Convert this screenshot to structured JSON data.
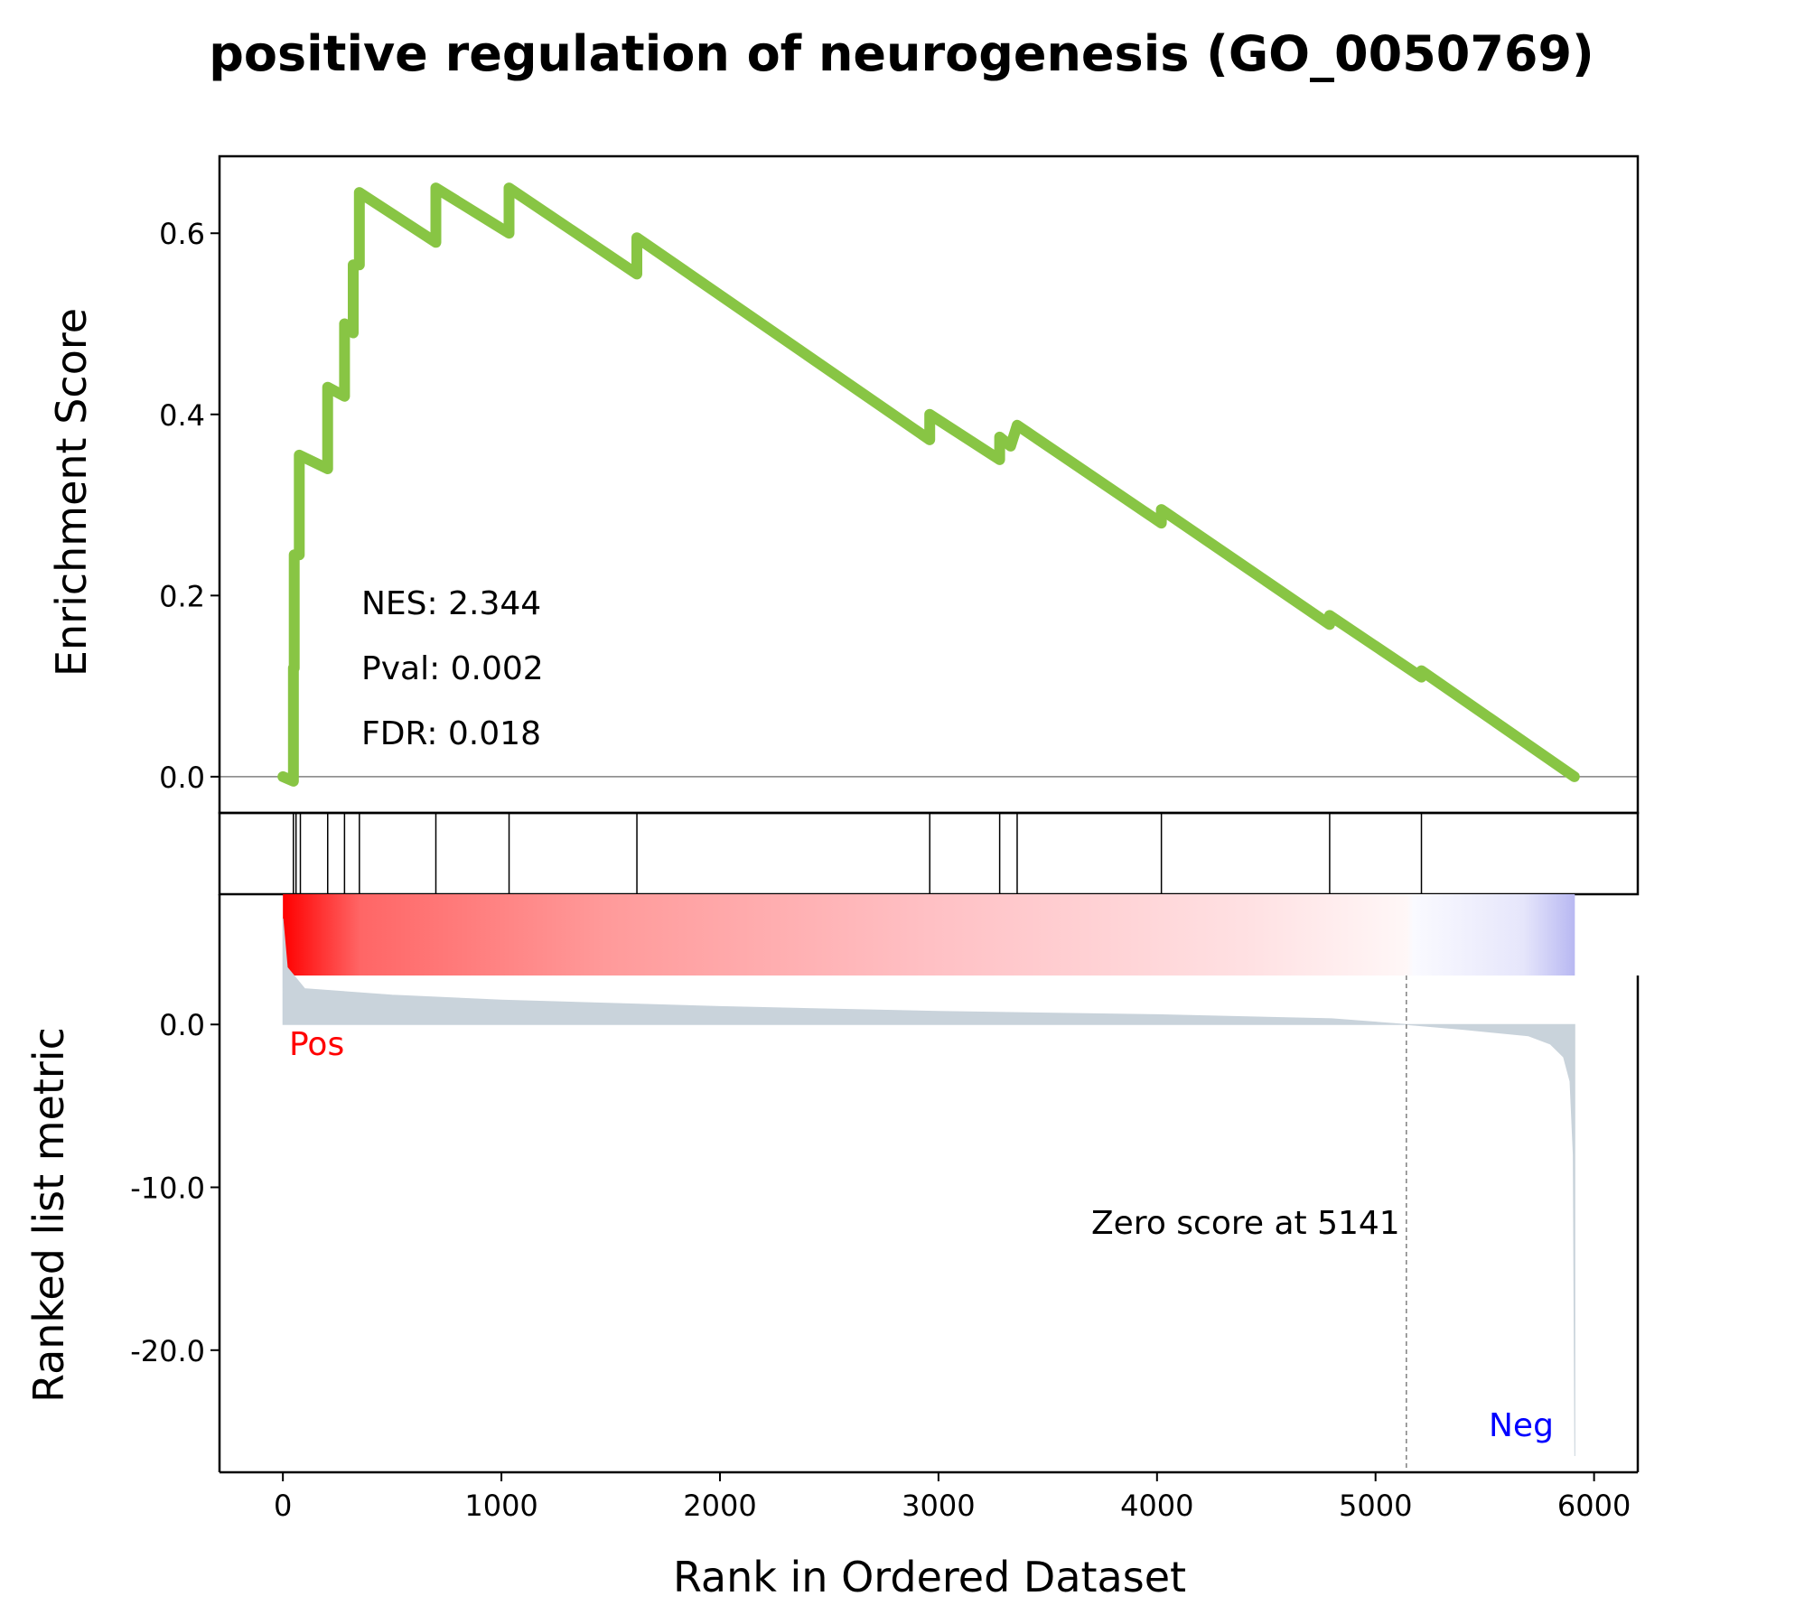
{
  "chart_data": {
    "type": "line",
    "title": "positive regulation of neurogenesis (GO_0050769)",
    "xlabel": "Rank in Ordered Dataset",
    "xlim": [
      -290,
      6200
    ],
    "xticks": [
      0,
      1000,
      2000,
      3000,
      4000,
      5000,
      6000
    ],
    "colors": {
      "es_line": "#88c544",
      "pos_label": "#ff0000",
      "neg_label": "#0000ff",
      "metric_fill": "#c9d3db",
      "zero_line": "#808080",
      "frame": "#000000"
    },
    "panels": {
      "es": {
        "ylabel": "Enrichment Score",
        "ylim": [
          -0.04,
          0.685
        ],
        "yticks": [
          0.0,
          0.2,
          0.4,
          0.6
        ],
        "ytick_labels": [
          "0.0",
          "0.2",
          "0.4",
          "0.6"
        ],
        "annotations": {
          "nes": "NES: 2.344",
          "pval": "Pval: 0.002",
          "fdr": "FDR: 0.018"
        },
        "series": [
          {
            "points": [
              [
                0,
                0.0
              ],
              [
                48,
                -0.005
              ],
              [
                48,
                0.12
              ],
              [
                52,
                0.12
              ],
              [
                52,
                0.245
              ],
              [
                75,
                0.245
              ],
              [
                75,
                0.355
              ],
              [
                205,
                0.34
              ],
              [
                205,
                0.43
              ],
              [
                282,
                0.42
              ],
              [
                282,
                0.5
              ],
              [
                322,
                0.49
              ],
              [
                322,
                0.565
              ],
              [
                350,
                0.565
              ],
              [
                350,
                0.645
              ],
              [
                700,
                0.59
              ],
              [
                700,
                0.65
              ],
              [
                1035,
                0.6
              ],
              [
                1035,
                0.65
              ],
              [
                1620,
                0.555
              ],
              [
                1620,
                0.595
              ],
              [
                2960,
                0.372
              ],
              [
                2960,
                0.4
              ],
              [
                3280,
                0.35
              ],
              [
                3280,
                0.375
              ],
              [
                3330,
                0.365
              ],
              [
                3360,
                0.388
              ],
              [
                4020,
                0.28
              ],
              [
                4020,
                0.295
              ],
              [
                4790,
                0.168
              ],
              [
                4790,
                0.178
              ],
              [
                5210,
                0.11
              ],
              [
                5210,
                0.117
              ],
              [
                5910,
                0.0
              ]
            ]
          }
        ]
      },
      "hits": {
        "positions": [
          48,
          60,
          80,
          205,
          282,
          350,
          700,
          1035,
          1620,
          2960,
          3280,
          3360,
          4020,
          4790,
          5210
        ]
      },
      "metric": {
        "ylabel": "Ranked list metric",
        "ylim": [
          -27.5,
          8.0
        ],
        "yticks": [
          0.0,
          -10.0,
          -20.0
        ],
        "ytick_labels": [
          "0.0",
          "-10.0",
          "-20.0"
        ],
        "pos_label": "Pos",
        "neg_label": "Neg",
        "zero_score_rank": 5141,
        "zero_score_label": "Zero score at 5141",
        "curve": [
          [
            0,
            6.5
          ],
          [
            20,
            3.5
          ],
          [
            100,
            2.2
          ],
          [
            500,
            1.8
          ],
          [
            1000,
            1.5
          ],
          [
            2000,
            1.1
          ],
          [
            3000,
            0.8
          ],
          [
            4000,
            0.6
          ],
          [
            4800,
            0.35
          ],
          [
            5141,
            0.0
          ],
          [
            5400,
            -0.3
          ],
          [
            5700,
            -0.7
          ],
          [
            5800,
            -1.2
          ],
          [
            5860,
            -2.0
          ],
          [
            5890,
            -3.5
          ],
          [
            5905,
            -8.0
          ],
          [
            5912,
            -26.5
          ]
        ]
      }
    }
  }
}
